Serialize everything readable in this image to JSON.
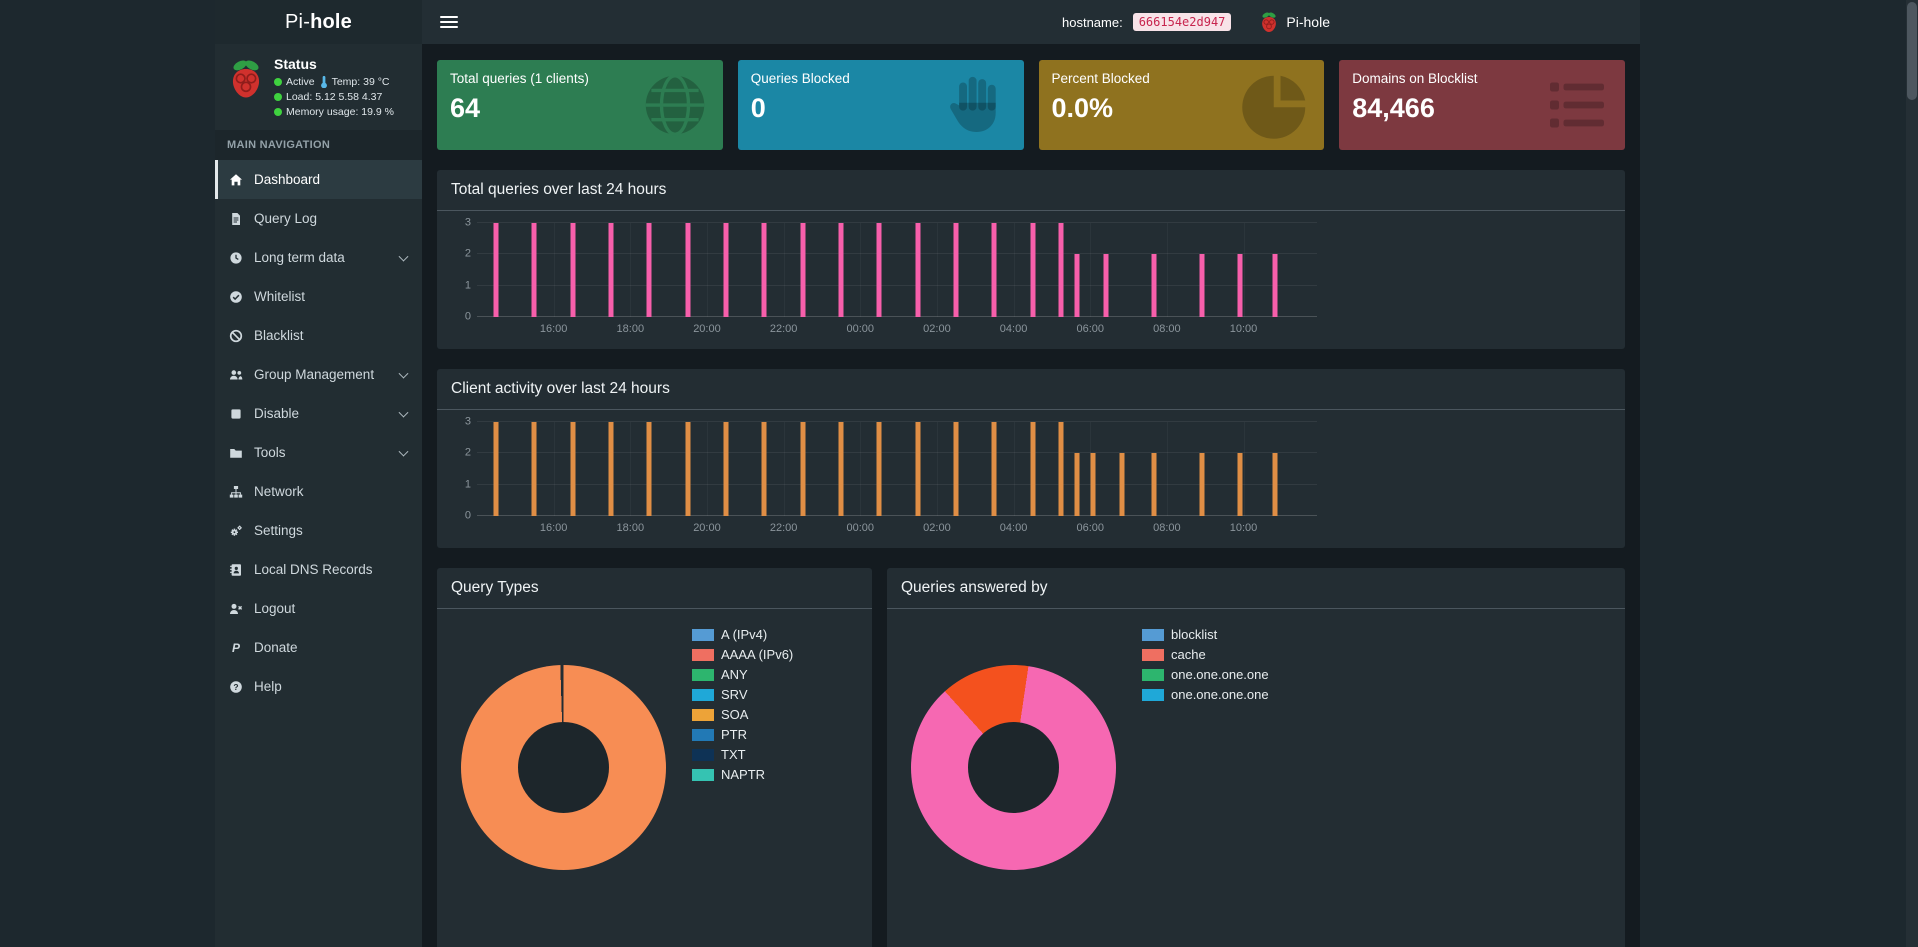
{
  "logo": {
    "prefix": "Pi-",
    "suffix": "hole"
  },
  "navbar": {
    "hostname_label": "hostname:",
    "hostname_value": "666154e2d947",
    "brand": "Pi-hole"
  },
  "sidebar": {
    "status": {
      "title": "Status",
      "active_label": "Active",
      "temp": "Temp: 39 °C",
      "load": "Load:  5.12  5.58  4.37",
      "memory": "Memory usage:  19.9 %"
    },
    "section_label": "MAIN NAVIGATION",
    "items": [
      {
        "label": "Dashboard",
        "icon": "home",
        "active": true
      },
      {
        "label": "Query Log",
        "icon": "file"
      },
      {
        "label": "Long term data",
        "icon": "clock",
        "expandable": true
      },
      {
        "label": "Whitelist",
        "icon": "check-circle"
      },
      {
        "label": "Blacklist",
        "icon": "ban"
      },
      {
        "label": "Group Management",
        "icon": "users",
        "expandable": true
      },
      {
        "label": "Disable",
        "icon": "stop",
        "expandable": true
      },
      {
        "label": "Tools",
        "icon": "folder",
        "expandable": true
      },
      {
        "label": "Network",
        "icon": "sitemap"
      },
      {
        "label": "Settings",
        "icon": "gears"
      },
      {
        "label": "Local DNS Records",
        "icon": "address-book"
      },
      {
        "label": "Logout",
        "icon": "user-times"
      },
      {
        "label": "Donate",
        "icon": "paypal"
      },
      {
        "label": "Help",
        "icon": "question-circle"
      }
    ]
  },
  "cards": [
    {
      "title": "Total queries (1 clients)",
      "value": "64",
      "color": "#2d7d52",
      "icon": "globe"
    },
    {
      "title": "Queries Blocked",
      "value": "0",
      "color": "#1b87a5",
      "icon": "hand"
    },
    {
      "title": "Percent Blocked",
      "value": "0.0%",
      "color": "#8f721f",
      "icon": "pie-chart"
    },
    {
      "title": "Domains on Blocklist",
      "value": "84,466",
      "color": "#7d3940",
      "icon": "list"
    }
  ],
  "chart_data": [
    {
      "id": "queries_over_time",
      "type": "bar",
      "title": "Total queries over last 24 hours",
      "color": "#f75fab",
      "ylim": [
        0,
        3
      ],
      "yticks": [
        0,
        1,
        2,
        3
      ],
      "x_range": [
        0,
        1315
      ],
      "xticks": [
        {
          "m": 120,
          "label": "16:00"
        },
        {
          "m": 240,
          "label": "18:00"
        },
        {
          "m": 360,
          "label": "20:00"
        },
        {
          "m": 480,
          "label": "22:00"
        },
        {
          "m": 600,
          "label": "00:00"
        },
        {
          "m": 720,
          "label": "02:00"
        },
        {
          "m": 840,
          "label": "04:00"
        },
        {
          "m": 960,
          "label": "06:00"
        },
        {
          "m": 1080,
          "label": "08:00"
        },
        {
          "m": 1200,
          "label": "10:00"
        }
      ],
      "bars": [
        [
          30,
          3
        ],
        [
          90,
          3
        ],
        [
          150,
          3
        ],
        [
          210,
          3
        ],
        [
          270,
          3
        ],
        [
          330,
          3
        ],
        [
          390,
          3
        ],
        [
          450,
          3
        ],
        [
          510,
          3
        ],
        [
          570,
          3
        ],
        [
          630,
          3
        ],
        [
          690,
          3
        ],
        [
          750,
          3
        ],
        [
          810,
          3
        ],
        [
          870,
          3
        ],
        [
          915,
          3
        ],
        [
          940,
          2
        ],
        [
          985,
          2
        ],
        [
          1060,
          2
        ],
        [
          1135,
          2
        ],
        [
          1195,
          2
        ],
        [
          1250,
          2
        ]
      ]
    },
    {
      "id": "clients_over_time",
      "type": "bar",
      "title": "Client activity over last 24 hours",
      "color": "#e08e45",
      "ylim": [
        0,
        3
      ],
      "yticks": [
        0,
        1,
        2,
        3
      ],
      "x_range": [
        0,
        1315
      ],
      "xticks": [
        {
          "m": 120,
          "label": "16:00"
        },
        {
          "m": 240,
          "label": "18:00"
        },
        {
          "m": 360,
          "label": "20:00"
        },
        {
          "m": 480,
          "label": "22:00"
        },
        {
          "m": 600,
          "label": "00:00"
        },
        {
          "m": 720,
          "label": "02:00"
        },
        {
          "m": 840,
          "label": "04:00"
        },
        {
          "m": 960,
          "label": "06:00"
        },
        {
          "m": 1080,
          "label": "08:00"
        },
        {
          "m": 1200,
          "label": "10:00"
        }
      ],
      "bars": [
        [
          30,
          3
        ],
        [
          90,
          3
        ],
        [
          150,
          3
        ],
        [
          210,
          3
        ],
        [
          270,
          3
        ],
        [
          330,
          3
        ],
        [
          390,
          3
        ],
        [
          450,
          3
        ],
        [
          510,
          3
        ],
        [
          570,
          3
        ],
        [
          630,
          3
        ],
        [
          690,
          3
        ],
        [
          750,
          3
        ],
        [
          810,
          3
        ],
        [
          870,
          3
        ],
        [
          915,
          3
        ],
        [
          940,
          2
        ],
        [
          965,
          2
        ],
        [
          1010,
          2
        ],
        [
          1060,
          2
        ],
        [
          1135,
          2
        ],
        [
          1195,
          2
        ],
        [
          1250,
          2
        ]
      ]
    },
    {
      "id": "query_types",
      "type": "pie",
      "title": "Query Types",
      "slices": [
        {
          "label": "A (IPv4)",
          "color": "#559bd4"
        },
        {
          "label": "AAAA (IPv6)",
          "color": "#ef6f61"
        },
        {
          "label": "ANY",
          "color": "#2db56e"
        },
        {
          "label": "SRV",
          "color": "#1fa8d8"
        },
        {
          "label": "SOA",
          "color": "#eda338"
        },
        {
          "label": "PTR",
          "color": "#2279b5"
        },
        {
          "label": "TXT",
          "color": "#0e3255"
        },
        {
          "label": "NAPTR",
          "color": "#35c3b2"
        }
      ],
      "donut": {
        "rotation_deg": 0,
        "segments": [
          {
            "color": "#f78d54",
            "frac": 0.995
          },
          {
            "color": "#232d33",
            "frac": 0.005
          }
        ]
      }
    },
    {
      "id": "queries_answered_by",
      "type": "pie",
      "title": "Queries answered by",
      "slices": [
        {
          "label": "blocklist",
          "color": "#559bd4"
        },
        {
          "label": "cache",
          "color": "#ef6f61"
        },
        {
          "label": "one.one.one.one",
          "color": "#2db56e"
        },
        {
          "label": "one.one.one.one",
          "color": "#1fa8d8"
        }
      ],
      "donut": {
        "rotation_deg": -42,
        "segments": [
          {
            "color": "#f4511e",
            "frac": 0.14
          },
          {
            "color": "#f668b2",
            "frac": 0.86
          }
        ]
      }
    }
  ]
}
